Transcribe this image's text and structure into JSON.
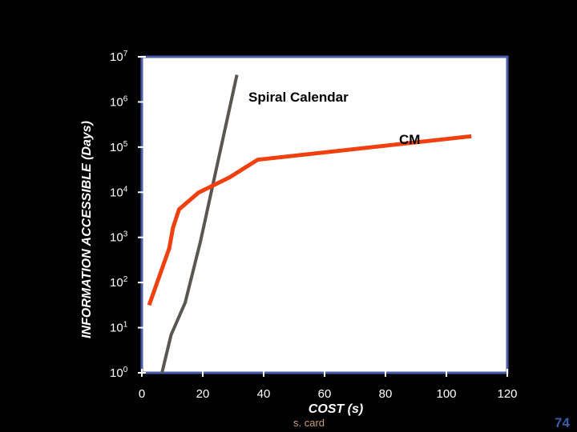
{
  "chart_data": {
    "type": "line",
    "xlabel": "COST (s)",
    "ylabel": "INFORMATION ACCESSIBLE (Days)",
    "xlim": [
      0,
      120
    ],
    "ylim_exponent": [
      0,
      7
    ],
    "y_scale": "log",
    "y_tick_base": "10",
    "x_ticks": [
      "0",
      "20",
      "40",
      "60",
      "80",
      "100",
      "120"
    ],
    "y_tick_exponents": [
      "0",
      "1",
      "2",
      "3",
      "4",
      "5",
      "6",
      "7"
    ],
    "grid": false,
    "series": [
      {
        "name": "Spiral Calendar",
        "color": "#5a5650",
        "points": [
          {
            "x": 6.6,
            "log10_y": 0.0
          },
          {
            "x": 9.6,
            "log10_y": 0.84
          },
          {
            "x": 14.2,
            "log10_y": 1.55
          },
          {
            "x": 19.2,
            "log10_y": 2.9
          },
          {
            "x": 31.2,
            "log10_y": 6.6
          }
        ]
      },
      {
        "name": "CM",
        "color": "#f04010",
        "points": [
          {
            "x": 2.4,
            "log10_y": 1.5
          },
          {
            "x": 9.0,
            "log10_y": 2.76
          },
          {
            "x": 10.2,
            "log10_y": 3.21
          },
          {
            "x": 12.2,
            "log10_y": 3.62
          },
          {
            "x": 18.6,
            "log10_y": 3.99
          },
          {
            "x": 28.8,
            "log10_y": 4.33
          },
          {
            "x": 38.0,
            "log10_y": 4.72
          },
          {
            "x": 108.2,
            "log10_y": 5.24
          }
        ]
      }
    ]
  },
  "footer": {
    "credit": "s. card",
    "page_number": "74"
  }
}
